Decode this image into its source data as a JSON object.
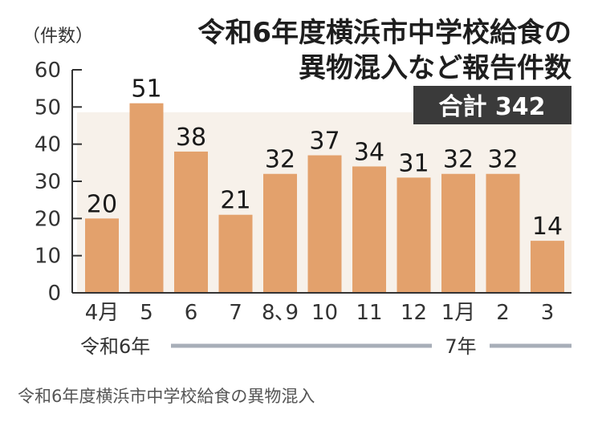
{
  "chart_data": {
    "type": "bar",
    "title_lines": [
      "令和6年度横浜市中学校給食の",
      "異物混入など報告件数"
    ],
    "total_label": "合計 342",
    "ylabel": "（件数）",
    "ylim": [
      0,
      60
    ],
    "yticks": [
      0,
      10,
      20,
      30,
      40,
      50,
      60
    ],
    "categories": [
      "4月",
      "5",
      "6",
      "7",
      "8､9",
      "10",
      "11",
      "12",
      "1月",
      "2",
      "3"
    ],
    "values": [
      20,
      51,
      38,
      21,
      32,
      37,
      34,
      31,
      32,
      32,
      14
    ],
    "era_labels": [
      "令和6年",
      "7年"
    ],
    "grid": false,
    "colors": {
      "bar": "#e3a16c",
      "plot_bg": "#f7f1ea",
      "axis": "#333333",
      "total_box": "#3a3a3a",
      "era_line": "#a7aeb8"
    }
  },
  "caption": "令和6年度横浜市中学校給食の異物混入"
}
